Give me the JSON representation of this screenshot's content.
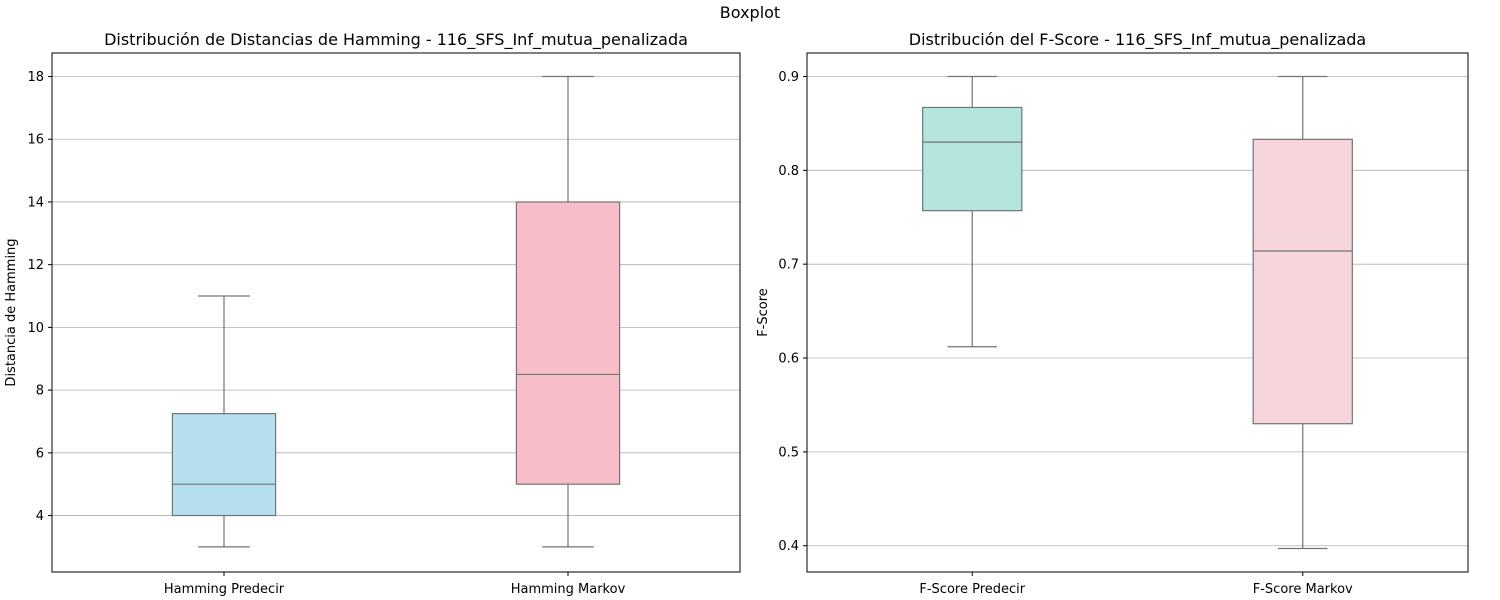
{
  "figure": {
    "suptitle": "Boxplot"
  },
  "chart_data": [
    {
      "type": "box",
      "title": "Distribución de Distancias de Hamming - 116_SFS_Inf_mutua_penalizada",
      "xlabel": "",
      "ylabel": "Distancia de Hamming",
      "ylim": [
        2.2,
        18.75
      ],
      "yticks": [
        4,
        6,
        8,
        10,
        12,
        14,
        16,
        18
      ],
      "ytick_labels": [
        "4",
        "6",
        "8",
        "10",
        "12",
        "14",
        "16",
        "18"
      ],
      "grid": "y",
      "categories": [
        "Hamming Predecir",
        "Hamming Markov"
      ],
      "boxes": [
        {
          "min": 3,
          "q1": 4,
          "median": 5,
          "q3": 7.25,
          "max": 11,
          "color": "#b5deef"
        },
        {
          "min": 3,
          "q1": 5,
          "median": 8.5,
          "q3": 14,
          "max": 18,
          "color": "#f5bec9"
        }
      ]
    },
    {
      "type": "box",
      "title": "Distribución del F-Score - 116_SFS_Inf_mutua_penalizada",
      "xlabel": "",
      "ylabel": "F-Score",
      "ylim": [
        0.372,
        0.925
      ],
      "yticks": [
        0.4,
        0.5,
        0.6,
        0.7,
        0.8,
        0.9
      ],
      "ytick_labels": [
        "0.4",
        "0.5",
        "0.6",
        "0.7",
        "0.8",
        "0.9"
      ],
      "grid": "y",
      "categories": [
        "F-Score Predecir",
        "F-Score Markov"
      ],
      "boxes": [
        {
          "min": 0.612,
          "q1": 0.757,
          "median": 0.83,
          "q3": 0.867,
          "max": 0.9,
          "color": "#b5e5df"
        },
        {
          "min": 0.397,
          "q1": 0.53,
          "median": 0.714,
          "q3": 0.833,
          "max": 0.9,
          "color": "#f7d5dd"
        }
      ]
    }
  ]
}
